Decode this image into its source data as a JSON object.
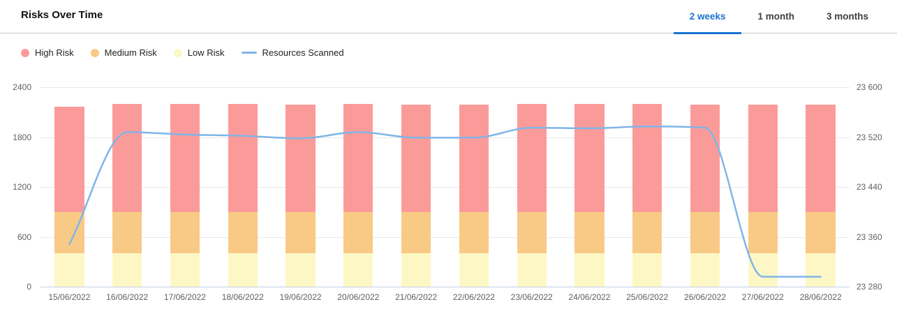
{
  "header": {
    "title": "Risks Over Time",
    "tabs": [
      {
        "label": "2 weeks",
        "active": true
      },
      {
        "label": "1 month",
        "active": false
      },
      {
        "label": "3 months",
        "active": false
      }
    ]
  },
  "legend": [
    {
      "label": "High Risk",
      "marker": "dot",
      "color": "#fb9b99"
    },
    {
      "label": "Medium Risk",
      "marker": "dot",
      "color": "#f8ca85"
    },
    {
      "label": "Low Risk",
      "marker": "dot",
      "color": "#fdf7c5"
    },
    {
      "label": "Resources Scanned",
      "marker": "line",
      "color": "#7fb5e8"
    }
  ],
  "colors": {
    "high_risk": "#fb9b99",
    "medium_risk": "#f8ca85",
    "low_risk": "#fdf7c5",
    "resources_line": "#7fb5e8",
    "active_tab": "#1a73d1",
    "gridline": "#e9e9e9",
    "baseline": "#c3cfe6"
  },
  "chart_data": {
    "type": "bar",
    "subtype": "stacked-bars-with-line-overlay",
    "categories": [
      "15/06/2022",
      "16/06/2022",
      "17/06/2022",
      "18/06/2022",
      "19/06/2022",
      "20/06/2022",
      "21/06/2022",
      "22/06/2022",
      "23/06/2022",
      "24/06/2022",
      "25/06/2022",
      "26/06/2022",
      "27/06/2022",
      "28/06/2022"
    ],
    "series": [
      {
        "name": "Low Risk",
        "type": "bar",
        "stack": "risks",
        "axis": "left",
        "color": "#fdf7c5",
        "values": [
          400,
          400,
          400,
          400,
          400,
          400,
          400,
          400,
          400,
          400,
          400,
          400,
          400,
          400
        ]
      },
      {
        "name": "Medium Risk",
        "type": "bar",
        "stack": "risks",
        "axis": "left",
        "color": "#f8ca85",
        "values": [
          500,
          500,
          500,
          500,
          500,
          500,
          500,
          500,
          500,
          500,
          500,
          500,
          500,
          500
        ]
      },
      {
        "name": "High Risk",
        "type": "bar",
        "stack": "risks",
        "axis": "left",
        "color": "#fb9b99",
        "values": [
          1265,
          1300,
          1295,
          1295,
          1290,
          1295,
          1290,
          1290,
          1295,
          1295,
          1295,
          1290,
          1290,
          1290
        ]
      },
      {
        "name": "Resources Scanned",
        "type": "line",
        "axis": "right",
        "color": "#7fb5e8",
        "values": [
          23348,
          23528,
          23524,
          23522,
          23518,
          23528,
          23519,
          23519,
          23535,
          23534,
          23537,
          23535,
          23296,
          23296
        ]
      }
    ],
    "left_axis": {
      "min": 0,
      "max": 2400,
      "ticks_top_to_bottom": [
        "2400",
        "1800",
        "1200",
        "600",
        "0"
      ]
    },
    "right_axis": {
      "min": 23280,
      "max": 23600,
      "ticks_top_to_bottom": [
        "23 600",
        "23 520",
        "23 440",
        "23 360",
        "23 280"
      ]
    },
    "grid": "horizontal",
    "legend_position": "top-left",
    "bar_width_fraction": 0.51
  }
}
